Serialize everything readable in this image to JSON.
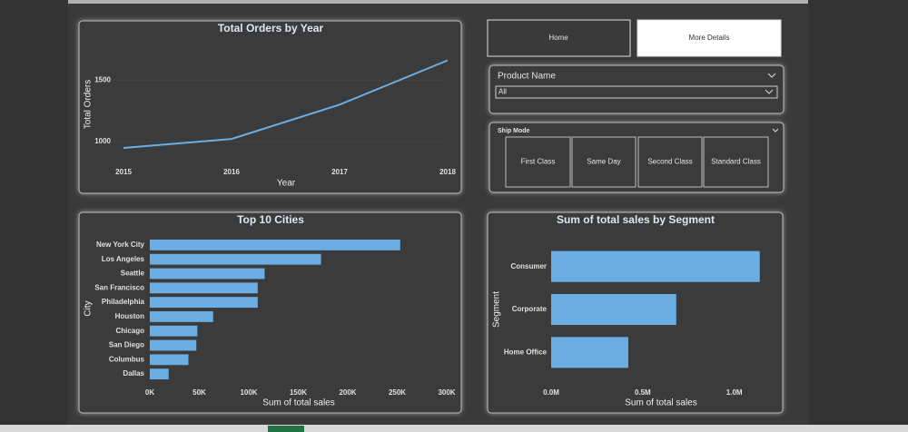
{
  "buttons": [
    "Home",
    "More Details"
  ],
  "slicers": [
    {
      "title": "Product Name",
      "selected": "All"
    },
    {
      "title": "Ship Mode",
      "options": [
        "First Class",
        "Same Day",
        "Second Class",
        "Standard Class"
      ]
    }
  ],
  "chart_data": [
    {
      "type": "line",
      "title": "Total Orders by Year",
      "x_label": "Year",
      "y_label": "Total Orders",
      "categories": [
        "2015",
        "2016",
        "2017",
        "2018"
      ],
      "values": [
        949,
        1022,
        1301,
        1662
      ],
      "color": "#6aaee3",
      "ylim": [
        860,
        1710
      ],
      "yticks": [
        1000,
        1500
      ],
      "grid": true
    },
    {
      "type": "hbar",
      "title": "Top 10 Cities",
      "x_label": "Sum of total sales",
      "y_label": "City",
      "categories": [
        "New York City",
        "Los Angeles",
        "Seattle",
        "San Francisco",
        "Philadelphia",
        "Houston",
        "Chicago",
        "San Diego",
        "Columbus",
        "Dallas"
      ],
      "values": [
        253000,
        173000,
        116000,
        109000,
        109000,
        64000,
        48000,
        47000,
        39000,
        19000
      ],
      "color": "#6aaee3",
      "xlim": [
        0,
        300000
      ],
      "xticks": [
        {
          "value": 0,
          "label": "0K"
        },
        {
          "value": 50000,
          "label": "50K"
        },
        {
          "value": 100000,
          "label": "100K"
        },
        {
          "value": 150000,
          "label": "150K"
        },
        {
          "value": 200000,
          "label": "200K"
        },
        {
          "value": 250000,
          "label": "250K"
        },
        {
          "value": 300000,
          "label": "300K"
        }
      ]
    },
    {
      "type": "hbar",
      "title": "Sum of total sales by Segment",
      "x_label": "Sum of total sales",
      "y_label": "Segment",
      "categories": [
        "Consumer",
        "Corporate",
        "Home Office"
      ],
      "values": [
        1139000,
        683000,
        421000
      ],
      "color": "#6aaee3",
      "xlim": [
        0,
        1180000
      ],
      "xticks": [
        {
          "value": 0,
          "label": "0.0M"
        },
        {
          "value": 500000,
          "label": "0.5M"
        },
        {
          "value": 1000000,
          "label": "1.0M"
        }
      ]
    }
  ]
}
